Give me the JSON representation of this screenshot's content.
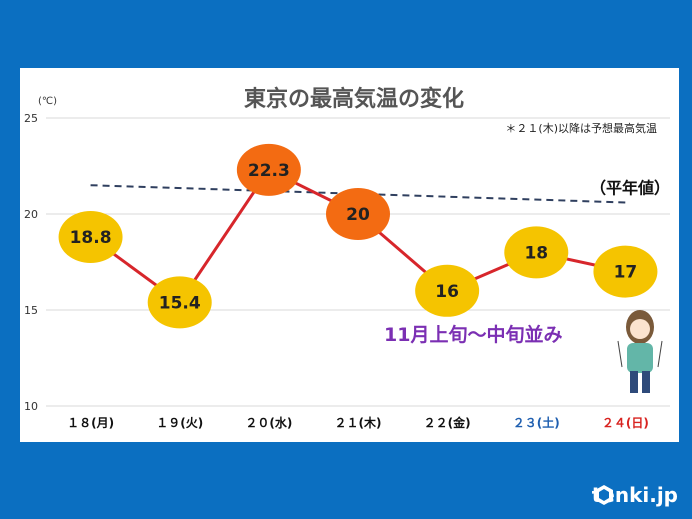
{
  "chart_data": {
    "type": "line",
    "title": "東京の最高気温の変化",
    "unit_label": "(℃)",
    "note": "＊２１(木)以降は予想最高気温",
    "ylim": [
      10,
      25
    ],
    "yticks": [
      "25",
      "20",
      "15",
      "10"
    ],
    "categories": [
      {
        "label": "１８(月)",
        "color": "#111111"
      },
      {
        "label": "１９(火)",
        "color": "#111111"
      },
      {
        "label": "２０(水)",
        "color": "#111111"
      },
      {
        "label": "２１(木)",
        "color": "#111111"
      },
      {
        "label": "２２(金)",
        "color": "#111111"
      },
      {
        "label": "２３(土)",
        "color": "#1f5fb0"
      },
      {
        "label": "２４(日)",
        "color": "#d8221f"
      }
    ],
    "series": [
      {
        "values": [
          18.8,
          15.4,
          22.3,
          20,
          16,
          18,
          17
        ],
        "labels": [
          "18.8",
          "15.4",
          "22.3",
          "20",
          "16",
          "18",
          "17"
        ],
        "highlight": [
          false,
          false,
          true,
          true,
          false,
          false,
          false
        ],
        "color": "#d7262b"
      }
    ],
    "normal_line": {
      "name": "（平年値）",
      "start": 21.5,
      "end": 20.6,
      "color": "#2f3f5f"
    },
    "annotation": "11月上旬～中旬並み",
    "colors": {
      "marker": "#f5c400",
      "marker_highlight": "#f36b12",
      "annotation": "#7b2fb3"
    }
  },
  "brand": {
    "name": "tenki.jp"
  }
}
